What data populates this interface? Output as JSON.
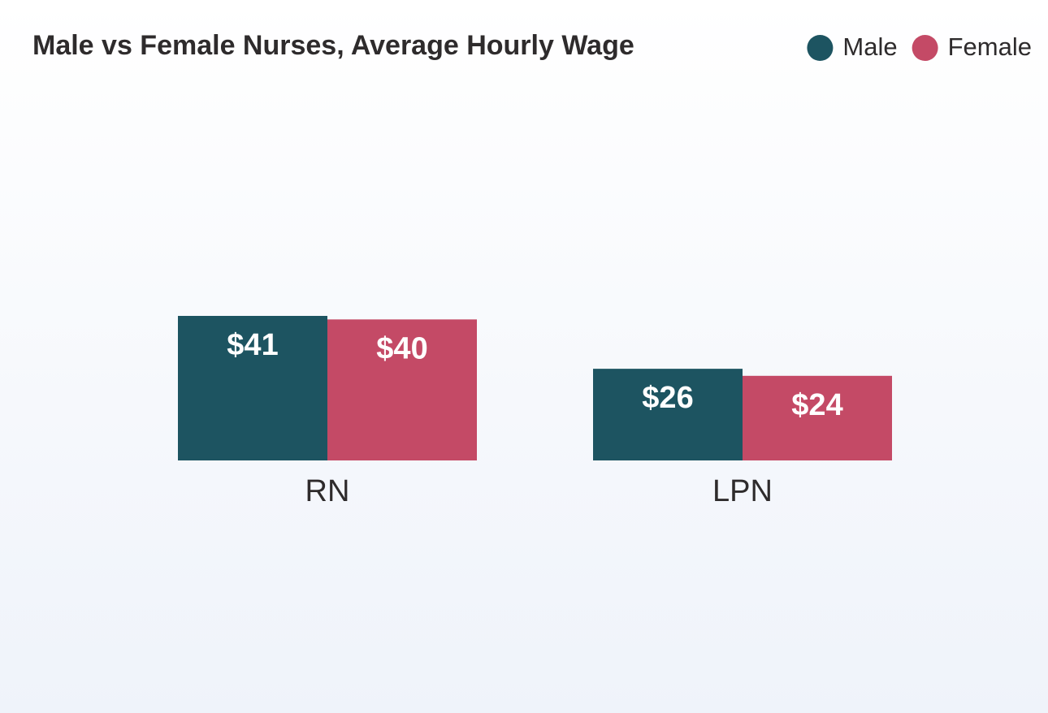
{
  "chart_data": {
    "type": "bar",
    "title": "Male vs Female Nurses, Average Hourly Wage",
    "categories": [
      "RN",
      "LPN"
    ],
    "series": [
      {
        "name": "Male",
        "color": "#1d5461",
        "values": [
          41,
          26
        ],
        "value_labels": [
          "$41",
          "$26"
        ]
      },
      {
        "name": "Female",
        "color": "#c44a66",
        "values": [
          40,
          24
        ],
        "value_labels": [
          "$40",
          "$24"
        ]
      }
    ],
    "legend": "top-right"
  }
}
